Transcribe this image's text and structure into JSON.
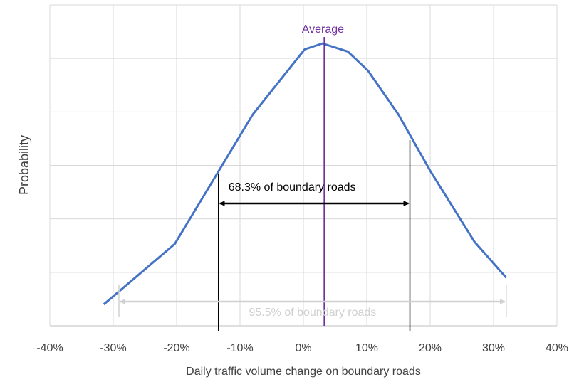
{
  "chart_data": {
    "type": "line",
    "x_label": "Daily traffic volume change on boundary roads",
    "y_label": "Probability",
    "x": [
      -31.5,
      -20.3,
      -8,
      0.2,
      3,
      7,
      10.2,
      15,
      20,
      27,
      32
    ],
    "series": [
      {
        "name": "Distribution",
        "color": "#4472c4",
        "values": [
          0.4,
          1.53,
          3.95,
          5.17,
          5.28,
          5.13,
          4.77,
          3.95,
          2.9,
          1.57,
          0.9
        ]
      }
    ],
    "xlim": [
      -40,
      40
    ],
    "xticks": [
      {
        "value": -40,
        "label": "-40%"
      },
      {
        "value": -30,
        "label": "-30%"
      },
      {
        "value": -20,
        "label": "-20%"
      },
      {
        "value": -10,
        "label": "-10%"
      },
      {
        "value": 0,
        "label": "0%"
      },
      {
        "value": 10,
        "label": "10%"
      },
      {
        "value": 20,
        "label": "20%"
      },
      {
        "value": 30,
        "label": "30%"
      },
      {
        "value": 40,
        "label": "40%"
      }
    ],
    "ylim": [
      0,
      6
    ],
    "yticks": [
      0,
      1,
      2,
      3,
      4,
      5,
      6
    ],
    "grid": true,
    "annotations": [
      {
        "text": "Average",
        "x": [
          3.3
        ],
        "color": "#7030a0"
      },
      {
        "text": "68.3% of boundary roads",
        "x": [
          -13.4,
          16.8
        ],
        "color": "#000000"
      },
      {
        "text": "95.5% of boundary roads",
        "x": [
          -29.1,
          32
        ],
        "color": "#d0d0d0"
      }
    ]
  }
}
